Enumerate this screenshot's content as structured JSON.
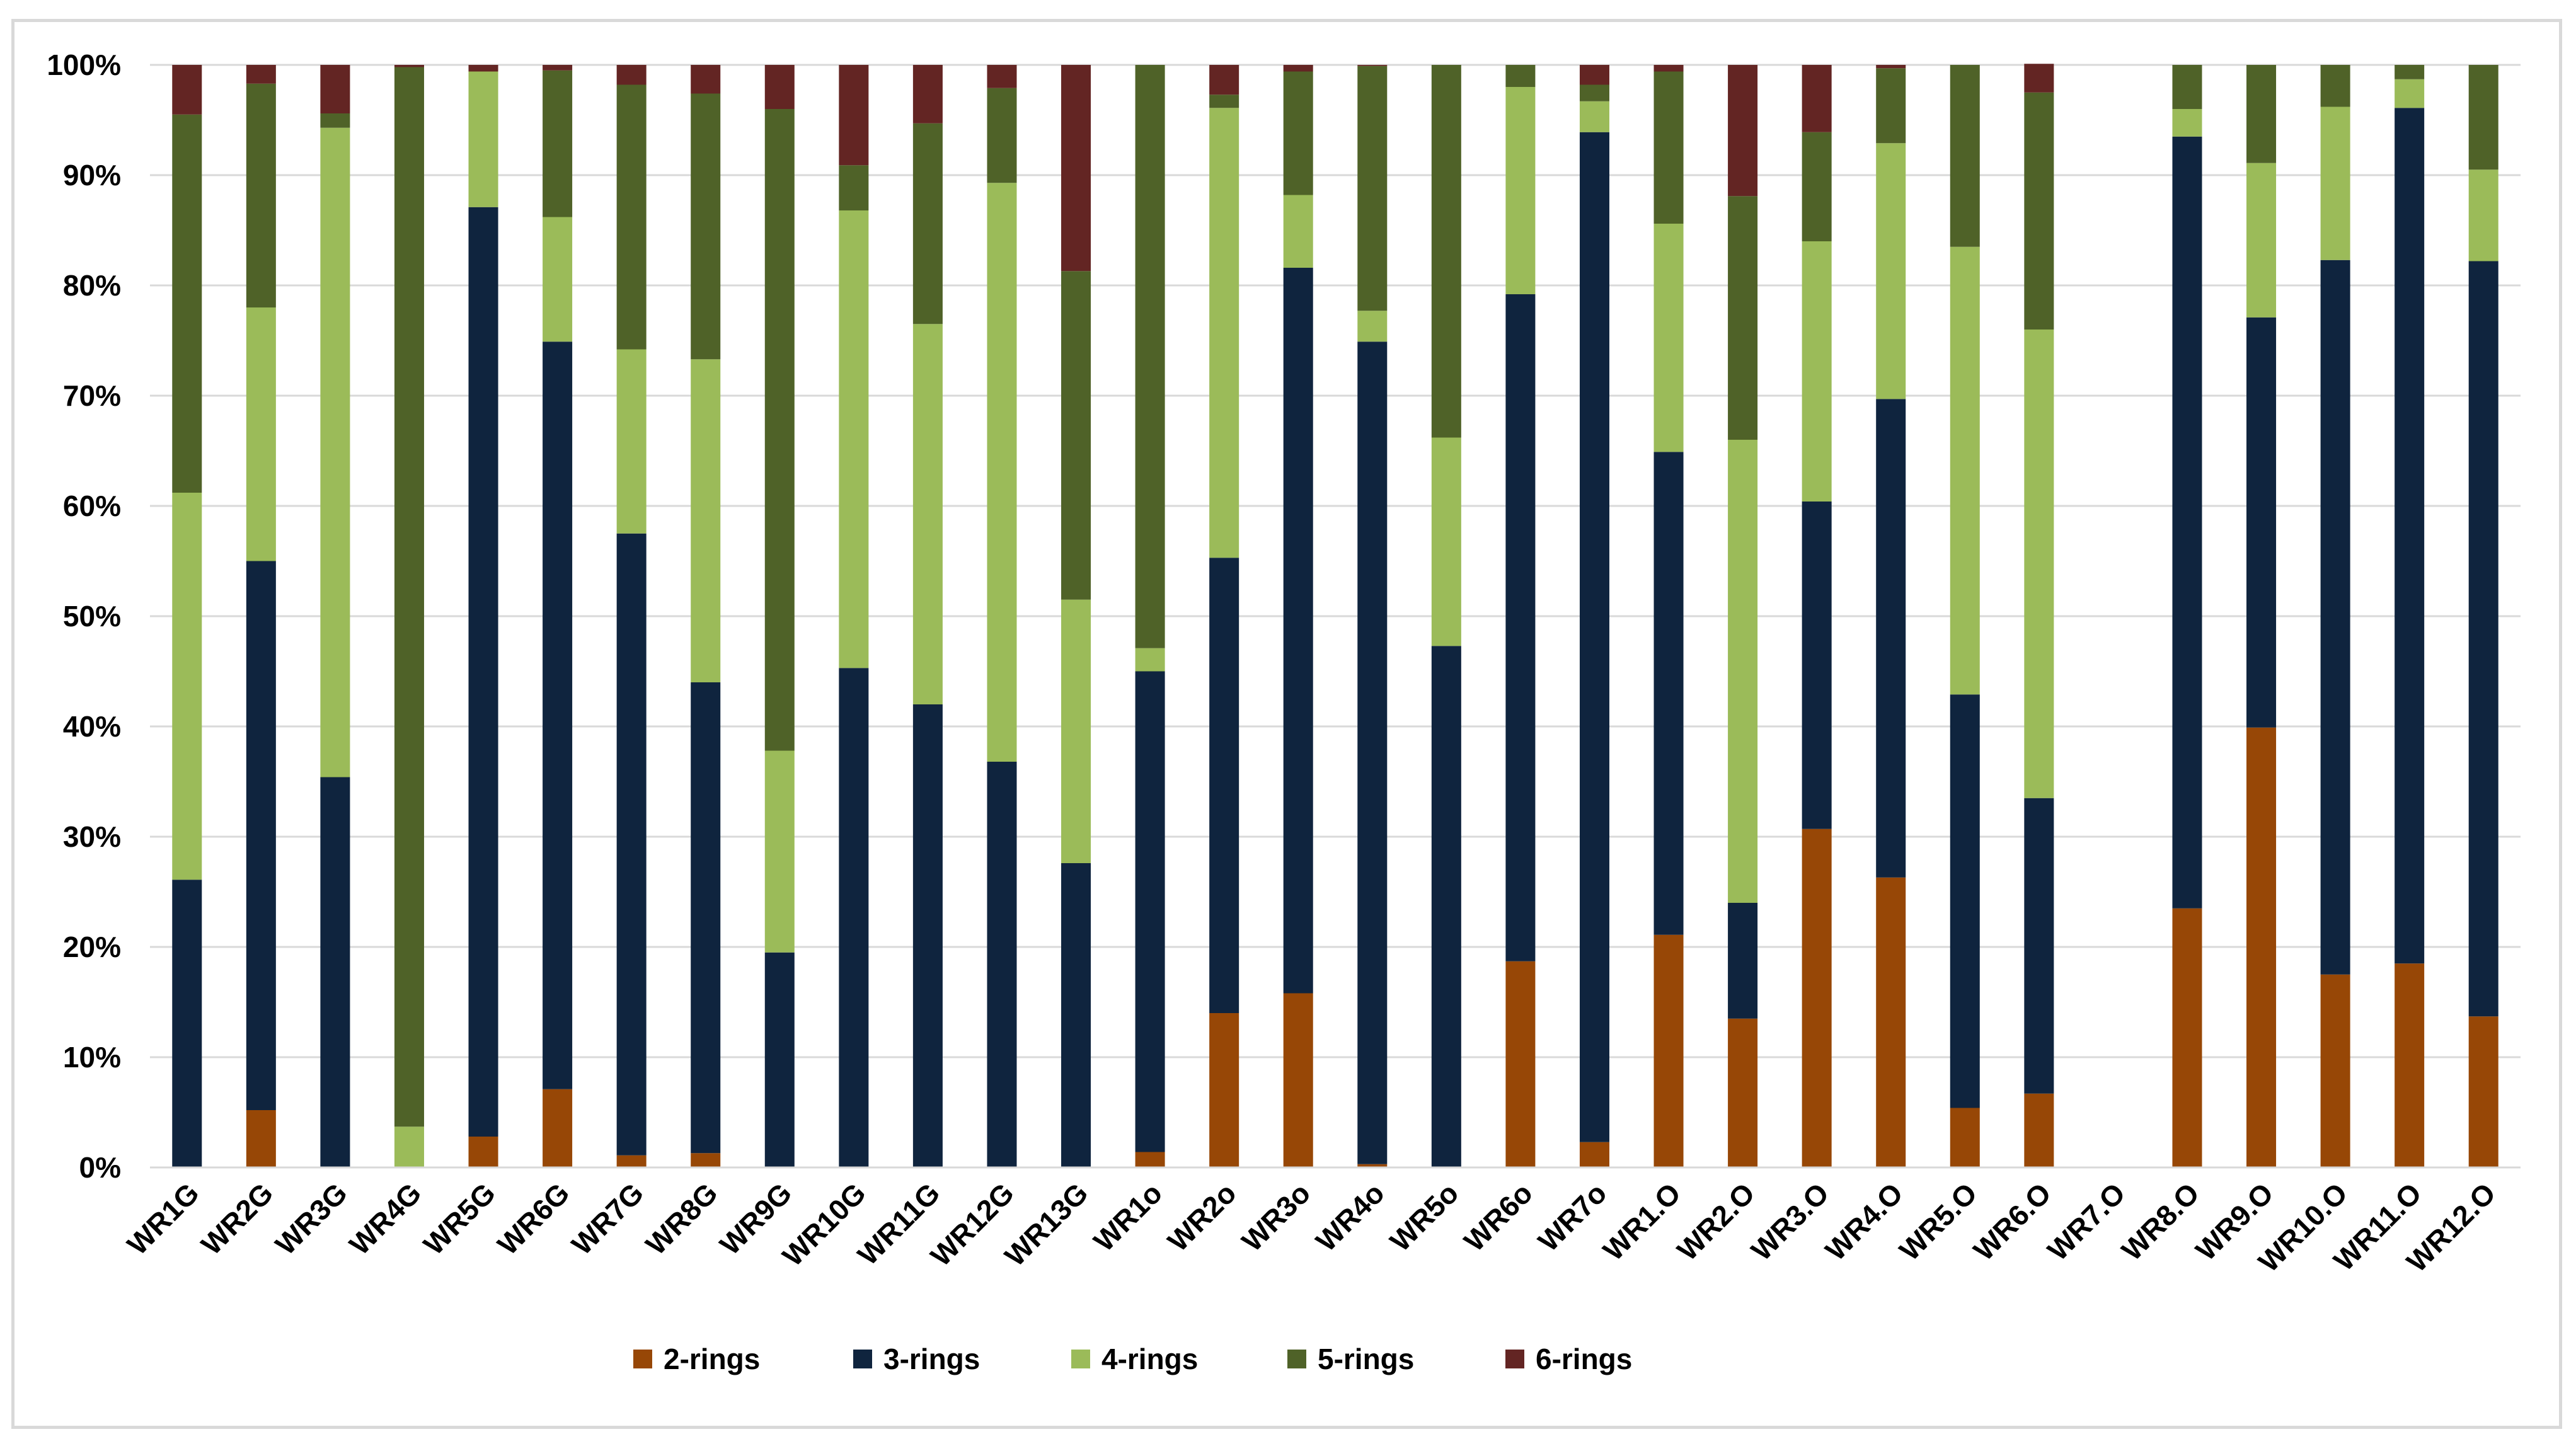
{
  "chart_data": {
    "type": "bar",
    "stacked": "percent",
    "title": "",
    "xlabel": "",
    "ylabel": "",
    "ylim": [
      0,
      100
    ],
    "yticks": [
      "0%",
      "10%",
      "20%",
      "30%",
      "40%",
      "50%",
      "60%",
      "70%",
      "80%",
      "90%",
      "100%"
    ],
    "grid": true,
    "legend_position": "bottom",
    "categories": [
      "WR1G",
      "WR2G",
      "WR3G",
      "WR4G",
      "WR5G",
      "WR6G",
      "WR7G",
      "WR8G",
      "WR9G",
      "WR10G",
      "WR11G",
      "WR12G",
      "WR13G",
      "WR1o",
      "WR2o",
      "WR3o",
      "WR4o",
      "WR5o",
      "WR6o",
      "WR7o",
      "WR1.O",
      "WR2.O",
      "WR3.O",
      "WR4.O",
      "WR5.O",
      "WR6.O",
      "WR7.O",
      "WR8.O",
      "WR9.O",
      "WR10.O",
      "WR11.O",
      "WR12.O"
    ],
    "series": [
      {
        "name": "2-rings",
        "color": "#974706",
        "values": [
          0,
          5.2,
          0,
          0,
          2.8,
          7.1,
          1.1,
          1.3,
          0,
          0,
          0,
          0,
          0,
          1.4,
          14,
          15.8,
          0.3,
          0,
          18.7,
          2.3,
          21.1,
          13.5,
          30.7,
          26.3,
          5.4,
          6.7,
          0,
          23.5,
          39.9,
          17.5,
          18.5,
          13.7
        ]
      },
      {
        "name": "3-rings",
        "color": "#0F243E",
        "values": [
          26.1,
          49.8,
          35.4,
          0,
          84.3,
          67.8,
          56.4,
          42.7,
          19.5,
          45.3,
          42,
          36.8,
          27.6,
          43.6,
          41.3,
          65.8,
          74.6,
          47.3,
          60.5,
          91.6,
          43.8,
          10.5,
          29.7,
          43.4,
          37.5,
          26.8,
          0,
          70,
          37.2,
          64.8,
          77.6,
          68.5
        ]
      },
      {
        "name": "4-rings",
        "color": "#9BBB59",
        "values": [
          35.1,
          23,
          58.9,
          3.7,
          12.3,
          11.3,
          16.7,
          29.3,
          18.3,
          41.5,
          34.5,
          52.5,
          23.9,
          2.1,
          40.8,
          6.6,
          2.8,
          18.9,
          18.8,
          2.8,
          20.7,
          42,
          23.6,
          23.2,
          40.6,
          42.5,
          0,
          2.5,
          14,
          13.9,
          2.6,
          8.3
        ]
      },
      {
        "name": "5-rings",
        "color": "#4F6228",
        "values": [
          34.3,
          20.3,
          1.3,
          96.1,
          0,
          13.3,
          24,
          24.1,
          58.2,
          4.1,
          18.2,
          8.6,
          29.8,
          52.9,
          1.2,
          11.2,
          22.2,
          33.8,
          2,
          1.5,
          13.8,
          22.1,
          9.9,
          6.8,
          16.5,
          21.5,
          0,
          4,
          8.9,
          3.8,
          1.3,
          9.5
        ]
      },
      {
        "name": "6-rings",
        "color": "#632523",
        "values": [
          4.5,
          1.7,
          4.4,
          0.2,
          0.6,
          0.5,
          1.8,
          2.6,
          4,
          9.1,
          5.3,
          2.1,
          18.7,
          0,
          2.7,
          0.6,
          0.1,
          0,
          0,
          1.8,
          0.6,
          11.9,
          6.1,
          0.3,
          0,
          2.6,
          0,
          0,
          0,
          0,
          0,
          0
        ]
      }
    ]
  }
}
